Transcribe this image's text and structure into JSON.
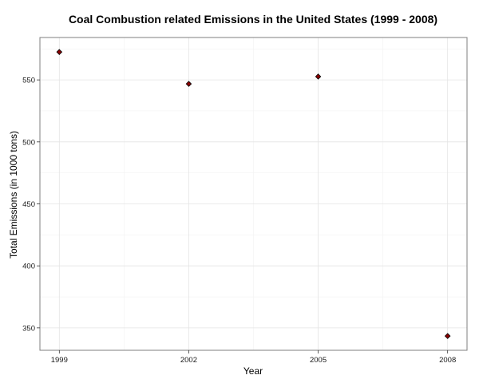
{
  "chart_data": {
    "type": "scatter",
    "title": "Coal Combustion related Emissions in the United States (1999 - 2008)",
    "xlabel": "Year",
    "ylabel": "Total Emissions (in 1000 tons)",
    "x": [
      1999,
      2002,
      2005,
      2008
    ],
    "y": [
      572.5,
      546.8,
      552.7,
      343.4
    ],
    "xlim": [
      1998.55,
      2008.45
    ],
    "ylim": [
      331.9,
      584.2
    ],
    "x_ticks": [
      1999,
      2002,
      2005,
      2008
    ],
    "y_ticks": [
      350,
      400,
      450,
      500,
      550
    ],
    "grid": true,
    "marker": "diamond",
    "colors": {
      "point_fill": "#8b0000",
      "point_stroke": "#000000",
      "grid": "#e4e4e4",
      "panel_border": "#7f7f7f"
    }
  }
}
